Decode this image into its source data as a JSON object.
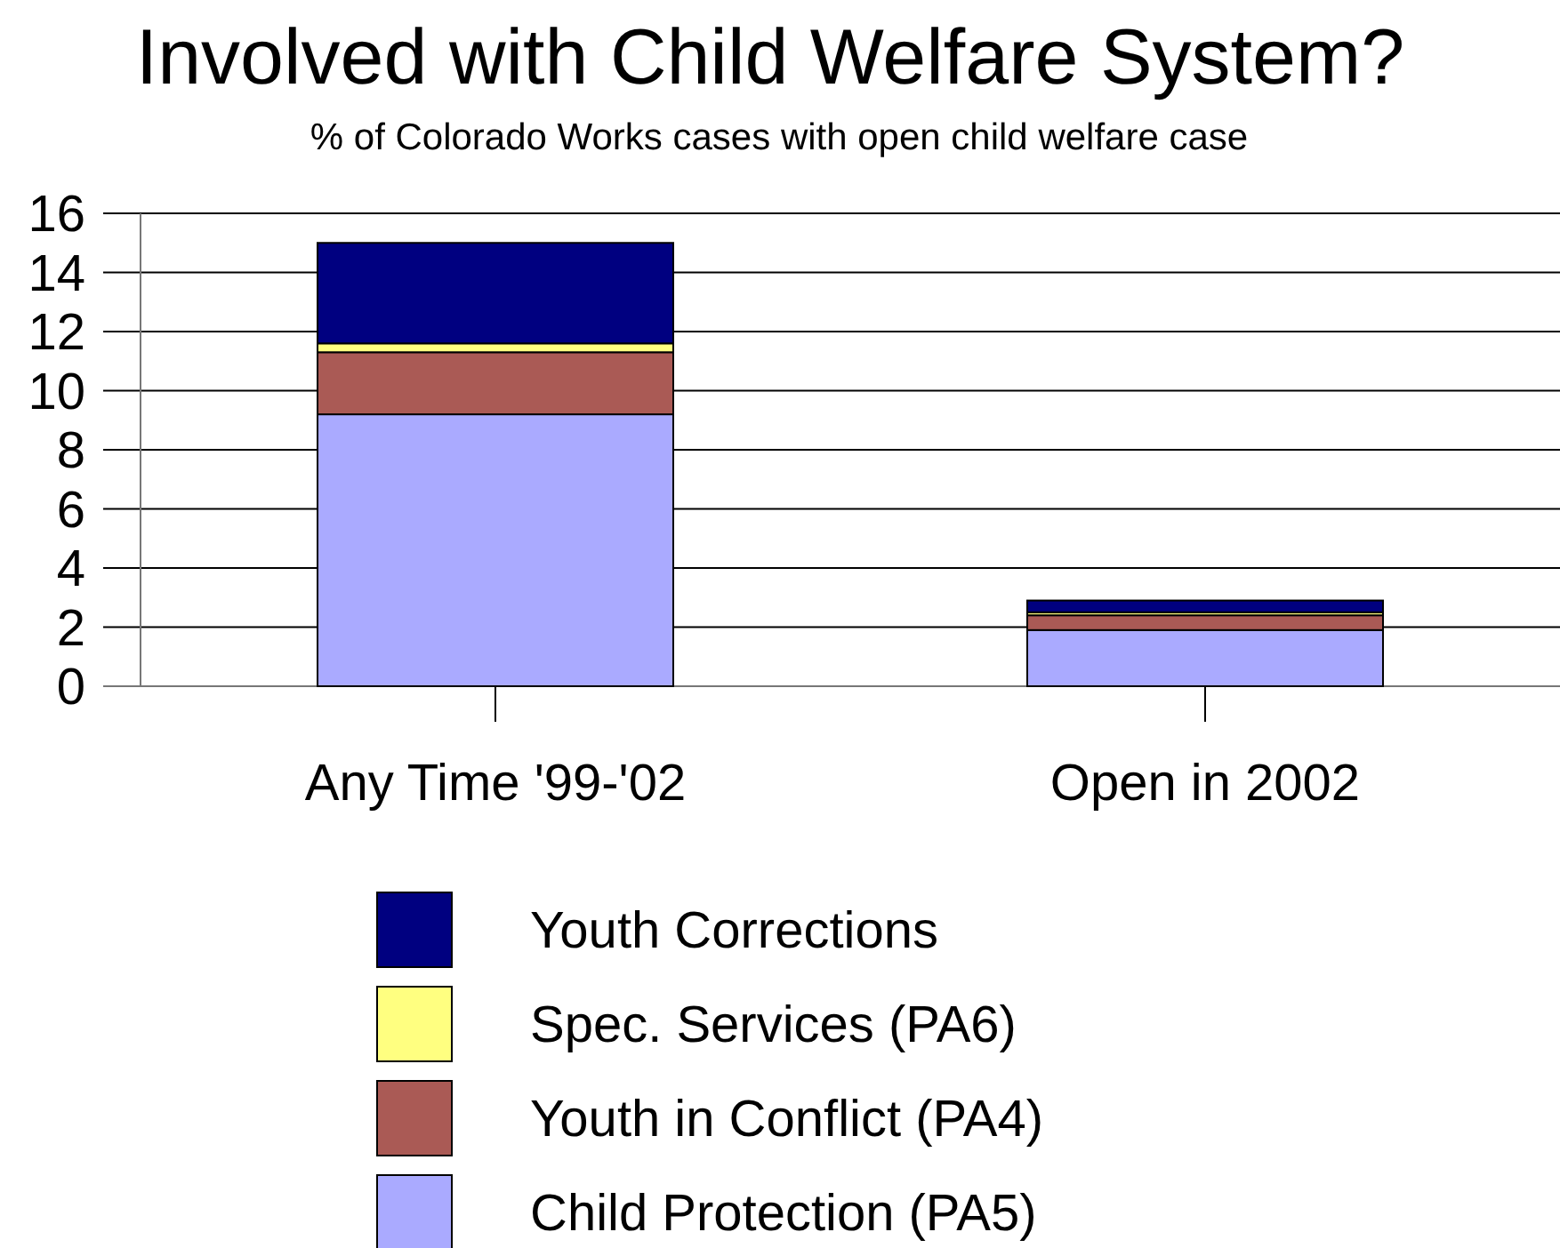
{
  "chart_data": {
    "type": "bar",
    "title": "Involved with Child Welfare System?",
    "subtitle": "% of Colorado Works cases with open child welfare case",
    "categories": [
      "Any Time '99-'02",
      "Open in 2002"
    ],
    "stacked": true,
    "series": [
      {
        "name": "Child Protection (PA5)",
        "color": "#aaaaff",
        "values": [
          9.2,
          1.9
        ]
      },
      {
        "name": "Youth in Conflict (PA4)",
        "color": "#aa5a55",
        "values": [
          2.1,
          0.5
        ]
      },
      {
        "name": "Spec. Services (PA6)",
        "color": "#ffff80",
        "values": [
          0.3,
          0.1
        ]
      },
      {
        "name": "Youth Corrections",
        "color": "#000080",
        "values": [
          3.4,
          0.4
        ]
      }
    ],
    "ylim": [
      0,
      16
    ],
    "yticks": [
      0,
      2,
      4,
      6,
      8,
      10,
      12,
      14,
      16
    ],
    "grid": "y",
    "legend": "bottom"
  }
}
